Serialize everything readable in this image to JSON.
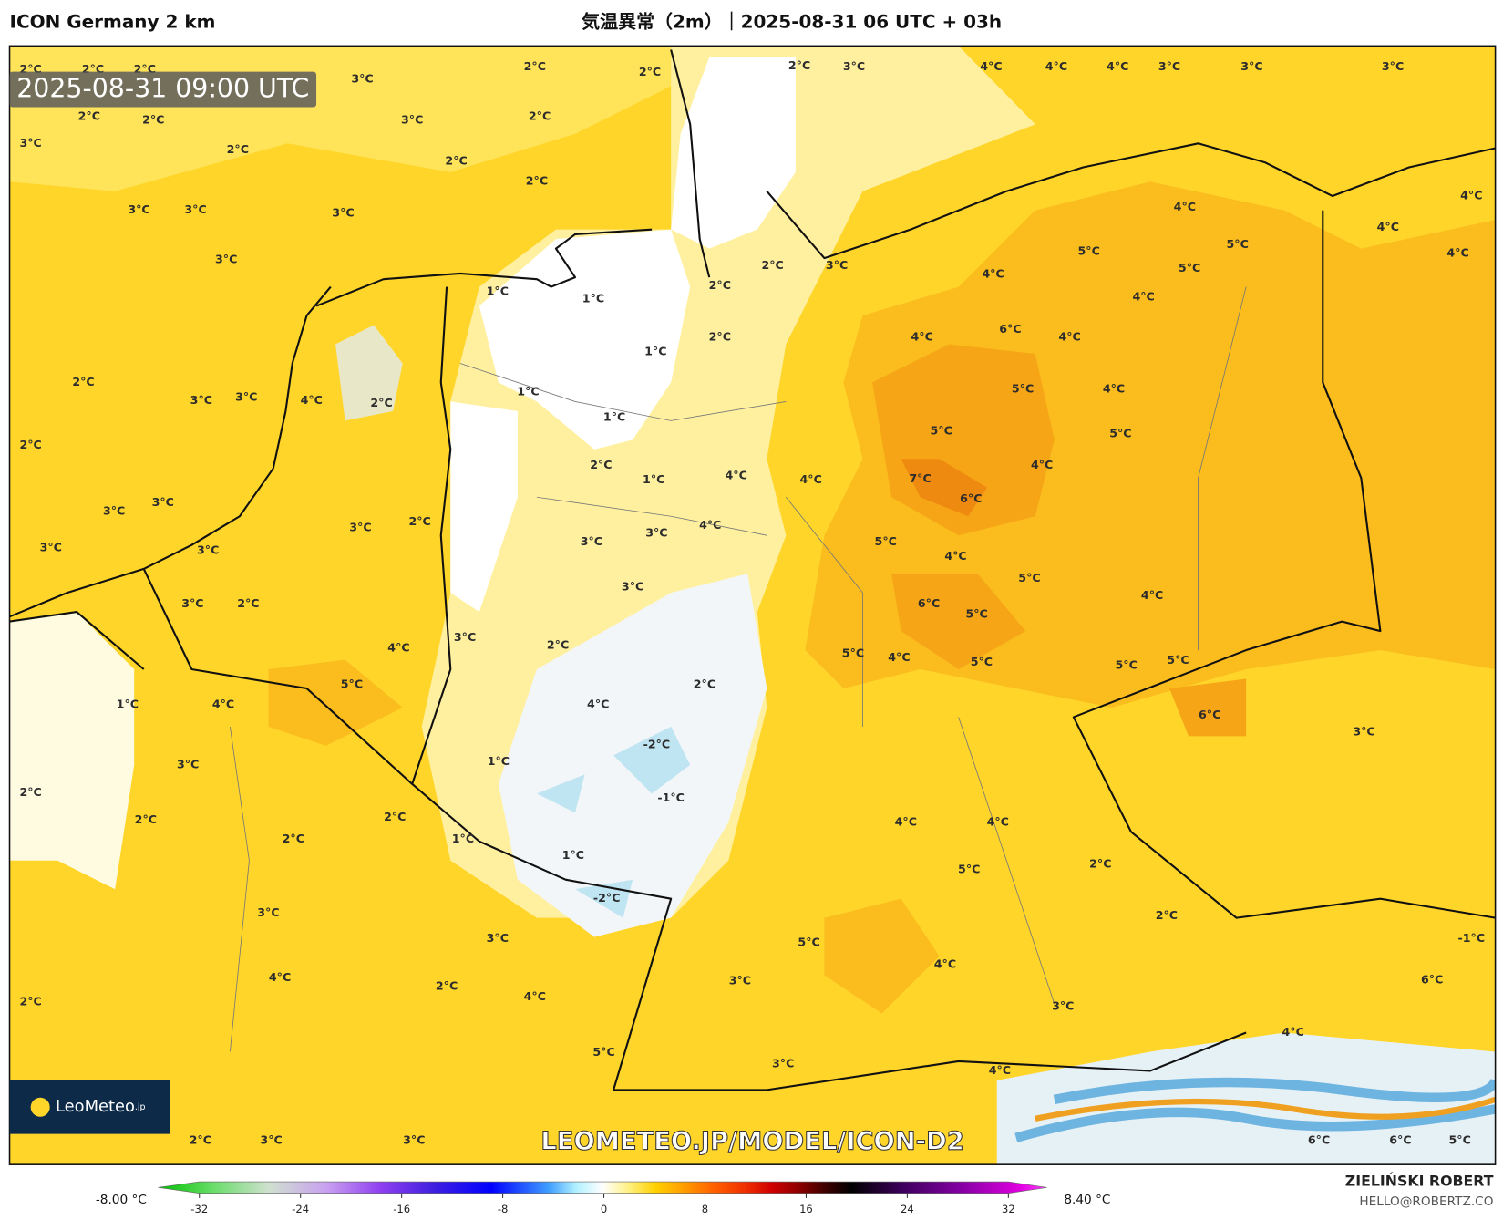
{
  "header": {
    "model": "ICON Germany 2 km",
    "title": "気温異常（2m）｜2025-08-31 06 UTC + 03h"
  },
  "map": {
    "timestamp": "2025-08-31 09:00 UTC",
    "watermark": "LEOMETEO.JP/MODEL/ICON-D2",
    "labels": [
      "2°C",
      "2°C",
      "2°C",
      "3°C",
      "2°C",
      "2°C",
      "2°C",
      "3°C",
      "4°C",
      "4°C",
      "4°C",
      "3°C",
      "3°C",
      "3°C",
      "2°C",
      "2°C",
      "3°C",
      "2°C",
      "3°C",
      "2°C",
      "2°C",
      "2°C",
      "3°C",
      "3°C",
      "3°C",
      "3°C",
      "4°C",
      "5°C",
      "5°C",
      "5°C",
      "4°C",
      "4°C",
      "4°C",
      "4°C",
      "4°C",
      "1°C",
      "1°C",
      "2°C",
      "2°C",
      "3°C",
      "2°C",
      "4°C",
      "6°C",
      "4°C",
      "5°C",
      "4°C",
      "5°C",
      "5°C",
      "7°C",
      "6°C",
      "4°C",
      "2°C",
      "2°C",
      "3°C",
      "3°C",
      "4°C",
      "2°C",
      "1°C",
      "1°C",
      "1°C",
      "2°C",
      "1°C",
      "4°C",
      "4°C",
      "3°C",
      "3°C",
      "3°C",
      "3°C",
      "3°C",
      "2°C",
      "3°C",
      "4°C",
      "3°C",
      "3°C",
      "5°C",
      "4°C",
      "5°C",
      "6°C",
      "5°C",
      "4°C",
      "3°C",
      "2°C",
      "3°C",
      "2°C",
      "4°C",
      "5°C",
      "1°C",
      "4°C",
      "2°C",
      "4°C",
      "-2°C",
      "1°C",
      "-1°C",
      "5°C",
      "4°C",
      "5°C",
      "5°C",
      "5°C",
      "6°C",
      "3°C",
      "3°C",
      "2°C",
      "2°C",
      "2°C",
      "2°C",
      "1°C",
      "1°C",
      "-2°C",
      "4°C",
      "4°C",
      "5°C",
      "2°C",
      "2°C",
      "3°C",
      "3°C",
      "5°C",
      "4°C",
      "3°C",
      "-1°C",
      "6°C",
      "2°C",
      "4°C",
      "2°C",
      "4°C",
      "3°C",
      "5°C",
      "3°C",
      "4°C",
      "4°C",
      "2°C",
      "3°C",
      "3°C",
      "6°C",
      "6°C",
      "5°C"
    ]
  },
  "logo": {
    "name": "LeoMeteo",
    "suffix": ".jp"
  },
  "legend": {
    "min_label": "-8.00 °C",
    "max_label": "8.40 °C",
    "ticks": [
      -32,
      -24,
      -16,
      -8,
      0,
      8,
      16,
      24,
      32
    ]
  },
  "credit": {
    "name": "ZIELIŃSKI ROBERT",
    "email": "HELLO@ROBERTZ.CO"
  }
}
